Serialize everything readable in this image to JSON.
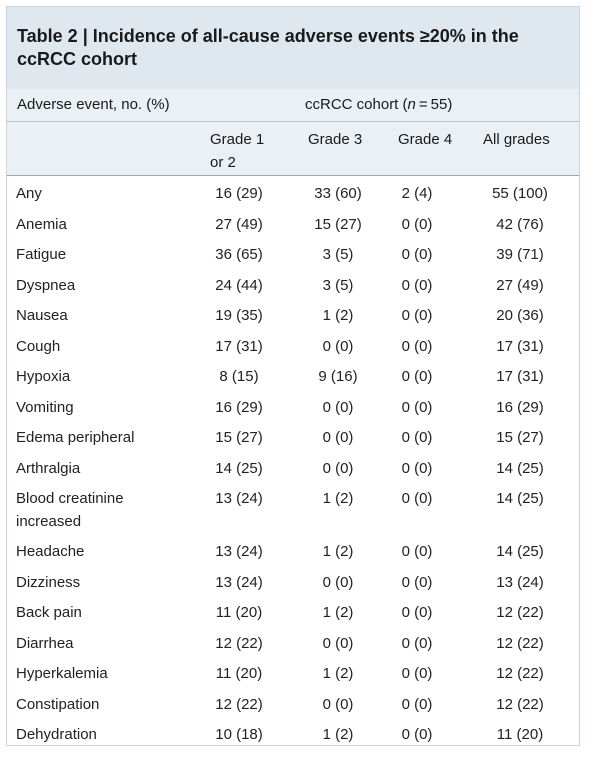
{
  "table": {
    "title_line1": "Table 2 | Incidence of all-cause adverse events ≥20% in the",
    "title_line2": "ccRCC cohort",
    "header_event": "Adverse event, no. (%)",
    "header_cohort_prefix": "ccRCC cohort (",
    "header_cohort_n": "n",
    "header_cohort_suffix": " = 55)",
    "col_grade12_line1": "Grade 1",
    "col_grade12_line2": "or 2",
    "col_grade3": "Grade 3",
    "col_grade4": "Grade 4",
    "col_all": "All grades",
    "rows": [
      {
        "event": "Any",
        "g12": "16 (29)",
        "g3": "33 (60)",
        "g4": "2 (4)",
        "all": "55 (100)"
      },
      {
        "event": "Anemia",
        "g12": "27 (49)",
        "g3": "15 (27)",
        "g4": "0 (0)",
        "all": "42 (76)"
      },
      {
        "event": "Fatigue",
        "g12": "36 (65)",
        "g3": "3 (5)",
        "g4": "0 (0)",
        "all": "39 (71)"
      },
      {
        "event": "Dyspnea",
        "g12": "24 (44)",
        "g3": "3 (5)",
        "g4": "0 (0)",
        "all": "27 (49)"
      },
      {
        "event": "Nausea",
        "g12": "19 (35)",
        "g3": "1 (2)",
        "g4": "0 (0)",
        "all": "20 (36)"
      },
      {
        "event": "Cough",
        "g12": "17 (31)",
        "g3": "0 (0)",
        "g4": "0 (0)",
        "all": "17 (31)"
      },
      {
        "event": "Hypoxia",
        "g12": "8 (15)",
        "g3": "9 (16)",
        "g4": "0 (0)",
        "all": "17 (31)"
      },
      {
        "event": "Vomiting",
        "g12": "16 (29)",
        "g3": "0 (0)",
        "g4": "0 (0)",
        "all": "16 (29)"
      },
      {
        "event": "Edema peripheral",
        "g12": "15 (27)",
        "g3": "0 (0)",
        "g4": "0 (0)",
        "all": "15 (27)"
      },
      {
        "event": "Arthralgia",
        "g12": "14 (25)",
        "g3": "0 (0)",
        "g4": "0 (0)",
        "all": "14 (25)"
      },
      {
        "event": "Blood creatinine",
        "event_line2": "increased",
        "g12": "13 (24)",
        "g3": "1 (2)",
        "g4": "0 (0)",
        "all": "14 (25)"
      },
      {
        "event": "Headache",
        "g12": "13 (24)",
        "g3": "1 (2)",
        "g4": "0 (0)",
        "all": "14 (25)"
      },
      {
        "event": "Dizziness",
        "g12": "13 (24)",
        "g3": "0 (0)",
        "g4": "0 (0)",
        "all": "13 (24)"
      },
      {
        "event": "Back pain",
        "g12": "11 (20)",
        "g3": "1 (2)",
        "g4": "0 (0)",
        "all": "12 (22)"
      },
      {
        "event": "Diarrhea",
        "g12": "12 (22)",
        "g3": "0 (0)",
        "g4": "0 (0)",
        "all": "12 (22)"
      },
      {
        "event": "Hyperkalemia",
        "g12": "11 (20)",
        "g3": "1 (2)",
        "g4": "0 (0)",
        "all": "12 (22)"
      },
      {
        "event": "Constipation",
        "g12": "12 (22)",
        "g3": "0 (0)",
        "g4": "0 (0)",
        "all": "12 (22)"
      },
      {
        "event": "Dehydration",
        "g12": "10 (18)",
        "g3": "1 (2)",
        "g4": "0 (0)",
        "all": "11 (20)"
      }
    ]
  }
}
